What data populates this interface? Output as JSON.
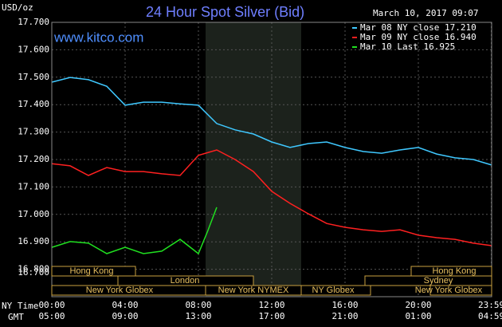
{
  "chart_data": {
    "type": "line",
    "title": "24 Hour Spot Silver (Bid)",
    "y_unit": "USD/oz",
    "timestamp": "March 10, 2017 09:07",
    "watermark": "www.kitco.com",
    "x_axis_label": "NY Time",
    "x2_axis_label": "GMT",
    "xlim": [
      0,
      24
    ],
    "xticks": [
      {
        "value": 0,
        "label": "00:00"
      },
      {
        "value": 4,
        "label": "04:00"
      },
      {
        "value": 8,
        "label": "08:00"
      },
      {
        "value": 12,
        "label": "12:00"
      },
      {
        "value": 16,
        "label": "16:00"
      },
      {
        "value": 20,
        "label": "20:00"
      },
      {
        "value": 23.98,
        "label": "23:59"
      }
    ],
    "gmt_tick_labels": [
      "05:00",
      "09:00",
      "13:00",
      "17:00",
      "21:00",
      "01:00",
      "04:59"
    ],
    "ylim": [
      16.7,
      17.7
    ],
    "yticks": [
      {
        "value": 16.7,
        "label": "16.700"
      },
      {
        "value": 16.8,
        "label": "16.800"
      },
      {
        "value": 16.9,
        "label": "16.900"
      },
      {
        "value": 17.0,
        "label": "17.000"
      },
      {
        "value": 17.1,
        "label": "17.100"
      },
      {
        "value": 17.2,
        "label": "17.200"
      },
      {
        "value": 17.3,
        "label": "17.300"
      },
      {
        "value": 17.4,
        "label": "17.400"
      },
      {
        "value": 17.5,
        "label": "17.500"
      },
      {
        "value": 17.6,
        "label": "17.600"
      },
      {
        "value": 17.7,
        "label": "17.700"
      }
    ],
    "grid": true,
    "series": [
      {
        "name": "Mar 08 NY close 17.210",
        "color": "#3fc8ff",
        "x": [
          0,
          1,
          2,
          3,
          4,
          5,
          6,
          7,
          8,
          9,
          10,
          11,
          12,
          13,
          14,
          15,
          16,
          17,
          18,
          19,
          20,
          21,
          22,
          23,
          24
        ],
        "values": [
          17.482,
          17.499,
          17.491,
          17.467,
          17.398,
          17.409,
          17.409,
          17.403,
          17.398,
          17.331,
          17.308,
          17.293,
          17.264,
          17.244,
          17.258,
          17.264,
          17.244,
          17.229,
          17.223,
          17.235,
          17.244,
          17.22,
          17.206,
          17.2,
          17.18
        ]
      },
      {
        "name": "Mar 09 NY close 16.940",
        "color": "#ff2020",
        "x": [
          0,
          1,
          2,
          3,
          4,
          5,
          6,
          7,
          8,
          9,
          10,
          11,
          12,
          13,
          14,
          15,
          16,
          17,
          18,
          19,
          20,
          21,
          22,
          23,
          24
        ],
        "values": [
          17.185,
          17.177,
          17.142,
          17.171,
          17.156,
          17.156,
          17.148,
          17.142,
          17.215,
          17.235,
          17.2,
          17.156,
          17.084,
          17.04,
          17.002,
          16.967,
          16.953,
          16.944,
          16.938,
          16.944,
          16.924,
          16.915,
          16.909,
          16.895,
          16.886
        ]
      },
      {
        "name": "Mar 10 Last 16.925",
        "color": "#20e020",
        "x": [
          0,
          1,
          2,
          3,
          4,
          5,
          6,
          7,
          8,
          8.5,
          9
        ],
        "values": [
          16.88,
          16.901,
          16.895,
          16.857,
          16.88,
          16.857,
          16.866,
          16.909,
          16.857,
          16.938,
          17.026
        ]
      }
    ],
    "sessions": [
      "Hong Kong",
      "London",
      "New York Globex",
      "New York NYMEX",
      "NY Globex",
      "Hong Kong",
      "Sydney",
      "New York Globex"
    ]
  }
}
